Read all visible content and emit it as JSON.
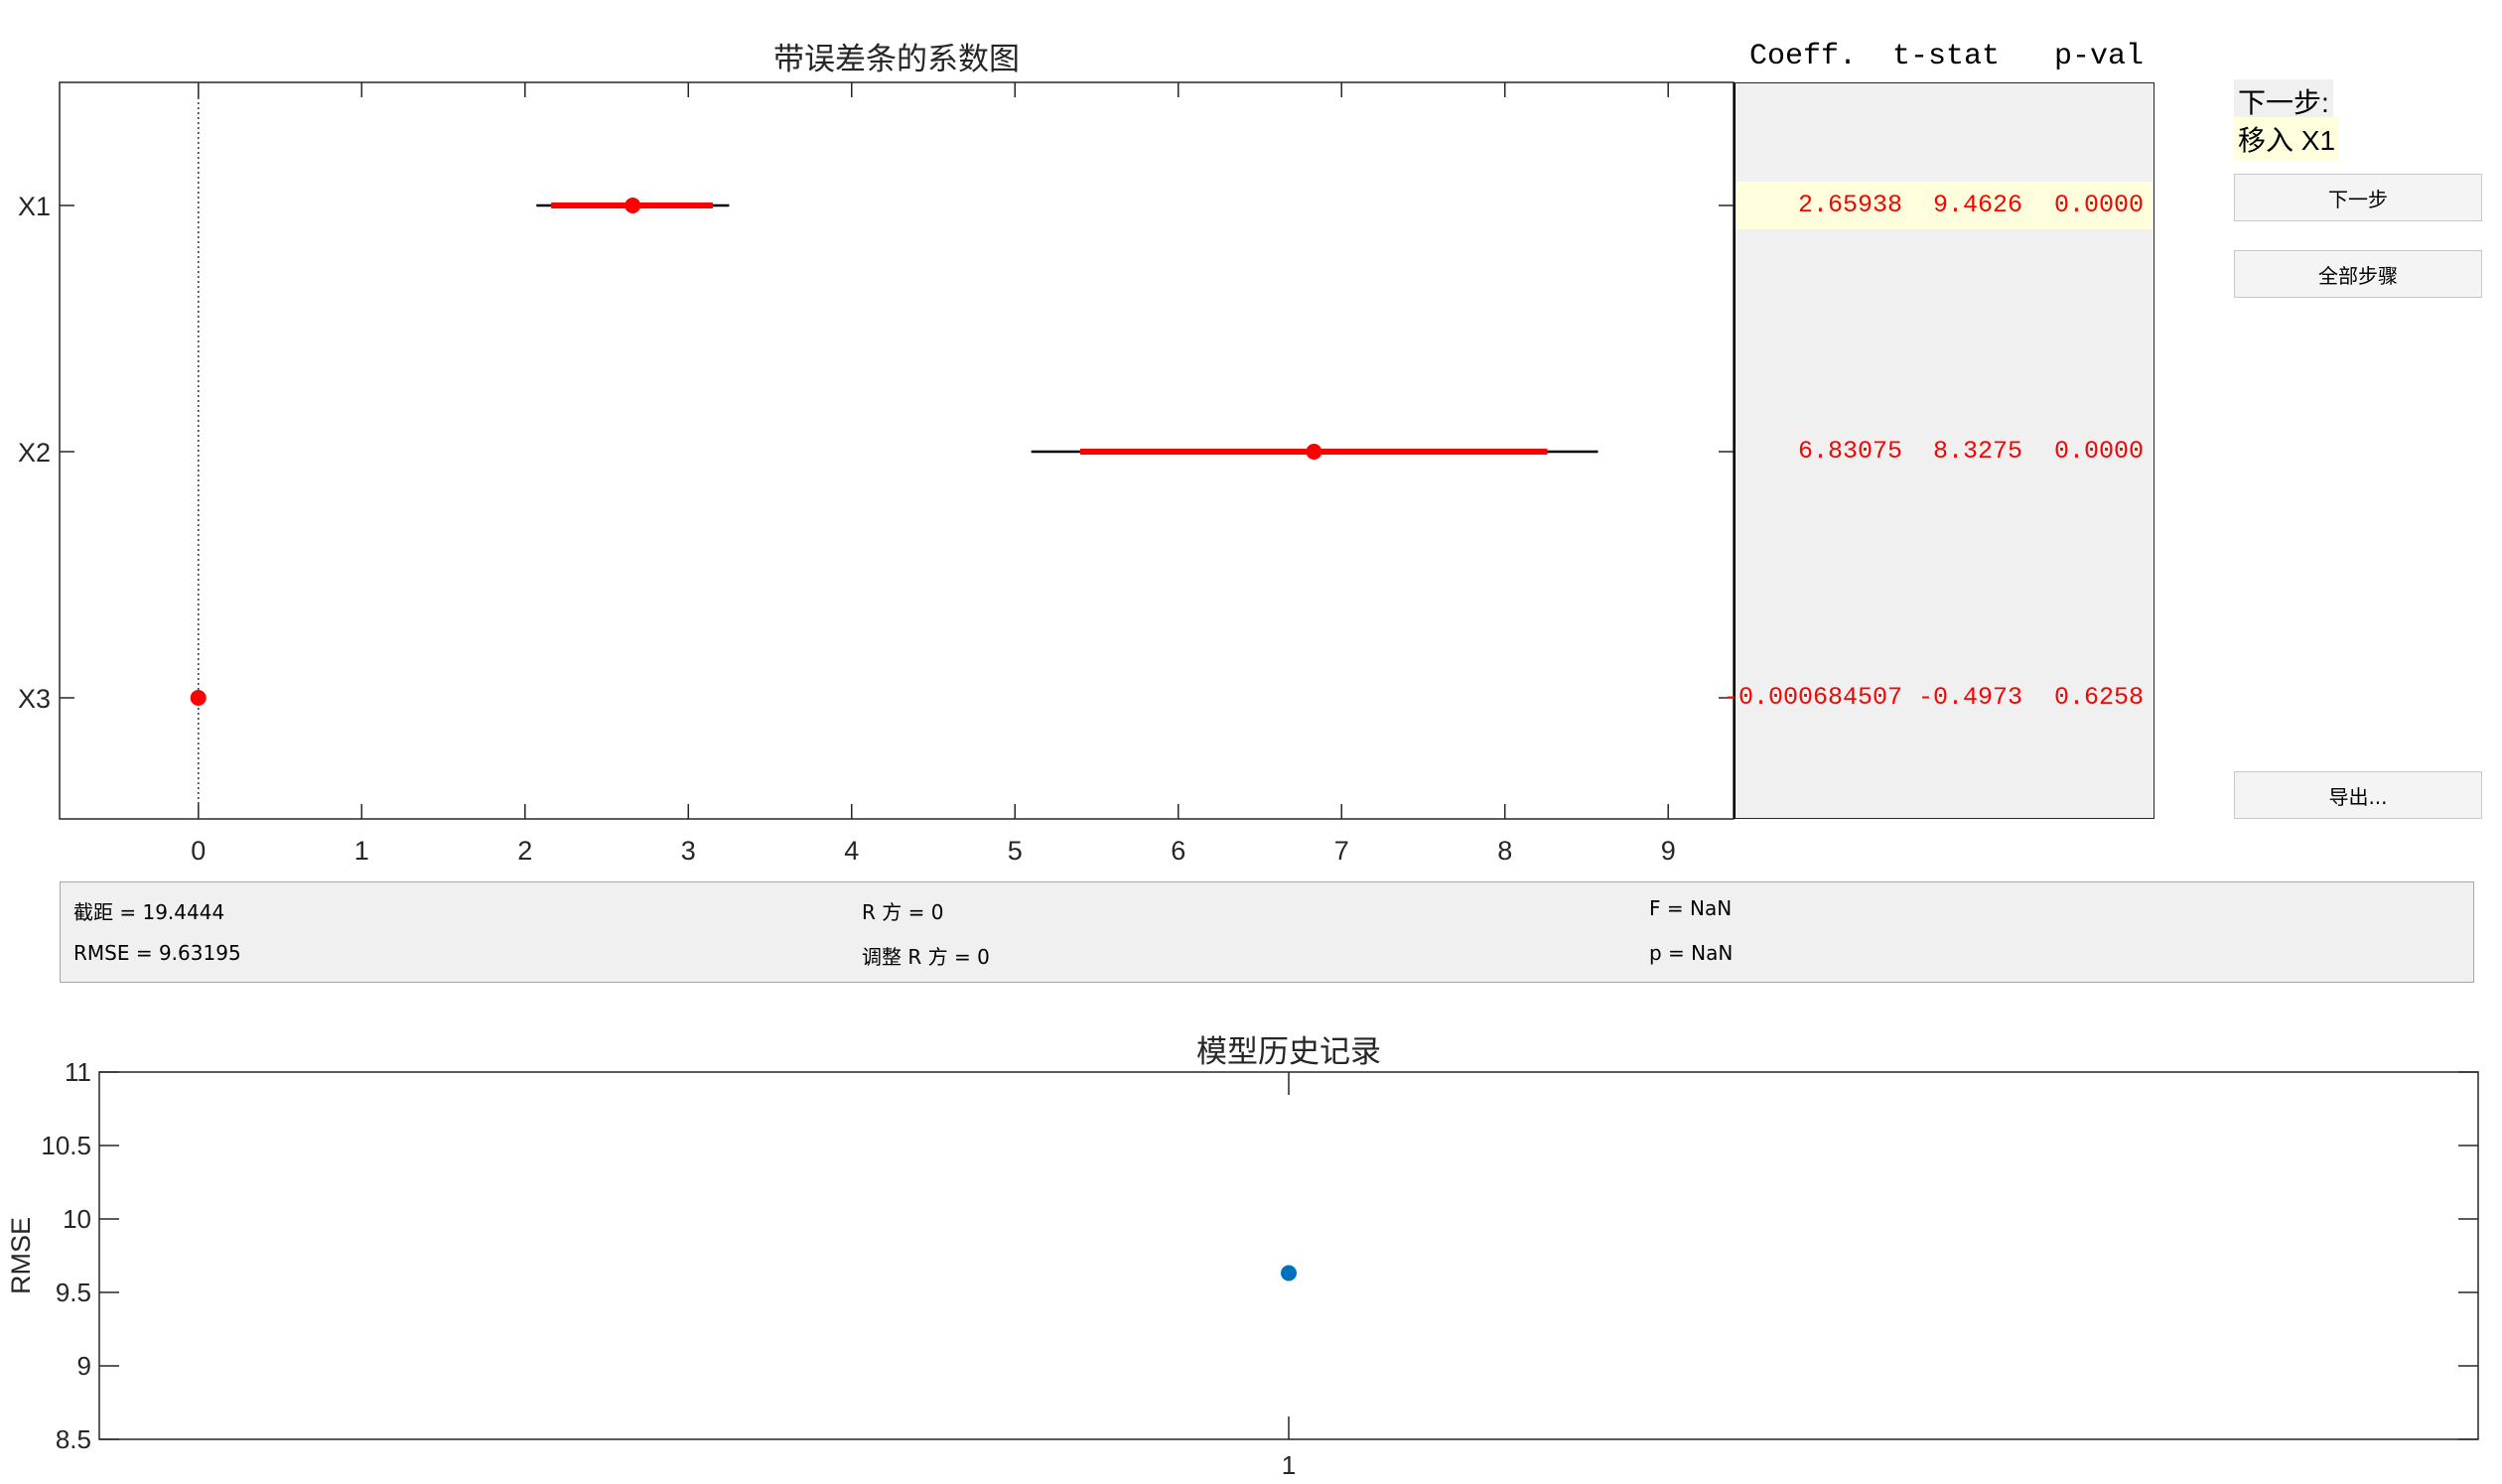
{
  "coef_plot": {
    "title": "带误差条的系数图",
    "chart_data": {
      "type": "errorbar",
      "title": "带误差条的系数图",
      "x_ticks": [
        0,
        1,
        2,
        3,
        4,
        5,
        6,
        7,
        8,
        9
      ],
      "xlim": [
        -0.85,
        9.4
      ],
      "categories": [
        "X1",
        "X2",
        "X3"
      ],
      "series": [
        {
          "label": "X1",
          "estimate": 2.65938,
          "ci_thick": [
            2.16,
            3.15
          ],
          "ci_thin": [
            2.07,
            3.25
          ]
        },
        {
          "label": "X2",
          "estimate": 6.83075,
          "ci_thick": [
            5.4,
            8.26
          ],
          "ci_thin": [
            5.1,
            8.57
          ]
        },
        {
          "label": "X3",
          "estimate": -0.000684507,
          "ci_thick": null,
          "ci_thin": null
        }
      ],
      "zero_line": 0,
      "colors": {
        "in_model": "#ff0000",
        "interval_thin": "#000000"
      }
    }
  },
  "table": {
    "headers": [
      "Coeff.",
      "t-stat",
      "p-val"
    ],
    "rows": [
      {
        "coeff": "2.65938",
        "tstat": "9.4626",
        "pval": "0.0000",
        "highlighted": true
      },
      {
        "coeff": "6.83075",
        "tstat": "8.3275",
        "pval": "0.0000",
        "highlighted": false
      },
      {
        "coeff": "-0.000684507",
        "tstat": "-0.4973",
        "pval": "0.6258",
        "highlighted": false
      }
    ],
    "text_color": "#ff0000",
    "highlight_color": "#ffffdd",
    "background": "#f0f0f0"
  },
  "side": {
    "next_step_label": "下一步:",
    "next_step_value": "移入 X1",
    "next_button": "下一步",
    "all_steps_button": "全部步骤",
    "export_button": "导出..."
  },
  "stats": {
    "intercept": "截距 = 19.4444",
    "rmse": "RMSE = 9.63195",
    "r2": "R 方 = 0",
    "adj_r2": "调整 R 方 = 0",
    "f": "F = NaN",
    "p": "p = NaN"
  },
  "history_plot": {
    "title": "模型历史记录",
    "chart_data": {
      "type": "scatter",
      "title": "模型历史记录",
      "ylabel": "RMSE",
      "x": [
        1
      ],
      "y": [
        9.63195
      ],
      "x_ticks": [
        1
      ],
      "y_ticks": [
        "8.5",
        "9",
        "9.5",
        "10",
        "10.5",
        "11"
      ],
      "ylim": [
        8.5,
        11
      ],
      "marker_color": "#0072bd"
    }
  }
}
